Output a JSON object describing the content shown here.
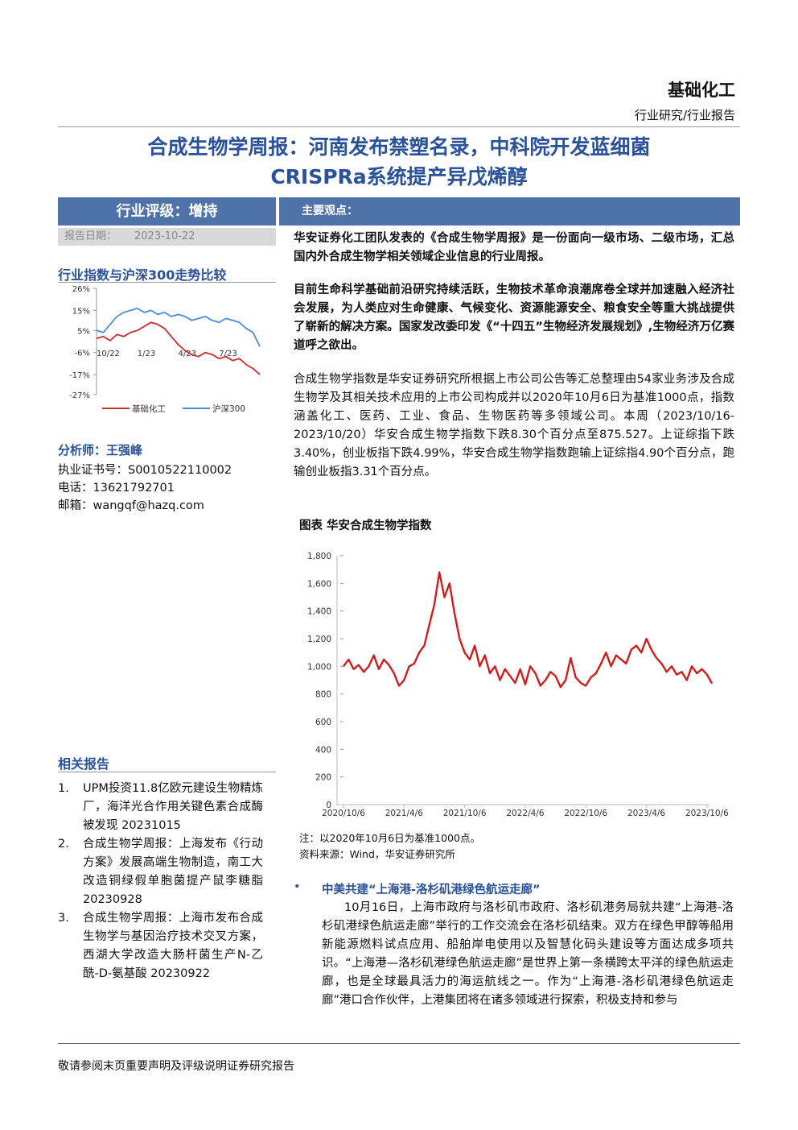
{
  "header": {
    "sector": "基础化工",
    "category": "行业研究/行业报告"
  },
  "title": [
    "合成生物学周报：河南发布禁塑名录，中科院开发蓝细菌",
    "CRISPRa系统提产异戊烯醇"
  ],
  "rating": {
    "label": "行业评级：增持",
    "date_label": "报告日期：",
    "date": "2023-10-22"
  },
  "sidebar": {
    "comparison_title": "行业指数与沪深300走势比较",
    "analyst": {
      "name": "分析师：王强峰",
      "lines": [
        "执业证书号：S0010522110002",
        "电话：13621792701",
        "邮箱：wangqf@hazq.com"
      ]
    },
    "related_title": "相关报告",
    "related": [
      {
        "num": "1.",
        "text": "UPM投资11.8亿欧元建设生物精炼厂，海洋光合作用关键色素合成酶被发现 20231015"
      },
      {
        "num": "2.",
        "text": "合成生物学周报：上海发布《行动方案》发展高端生物制造，南工大改造铜绿假单胞菌提产鼠李糖脂 20230928"
      },
      {
        "num": "3.",
        "text": "合成生物学周报：上海市发布合成生物学与基因治疗技术交叉方案，西湖大学改造大肠杆菌生产N-乙酰-D-氨基酸 20230922"
      }
    ]
  },
  "main": {
    "heading": "主要观点：",
    "bold_paragraphs": [
      "华安证券化工团队发表的《合成生物学周报》是一份面向一级市场、二级市场，汇总国内外合成生物学相关领域企业信息的行业周报。",
      "目前生命科学基础前沿研究持续活跃，生物技术革命浪潮席卷全球并加速融入经济社会发展，为人类应对生命健康、气候变化、资源能源安全、粮食安全等重大挑战提供了崭新的解决方案。国家发改委印发《“十四五”生物经济发展规划》,生物经济万亿赛道呼之欲出。"
    ],
    "paragraph": "合成生物学指数是华安证券研究所根据上市公司公告等汇总整理由54家业务涉及合成生物学及其相关技术应用的上市公司构成并以2020年10月6日为基准1000点，指数涵盖化工、医药、工业、食品、生物医药等多领域公司。本周（2023/10/16-2023/10/20）华安合成生物学指数下跌8.30个百分点至875.527。上证综指下跌3.40%，创业板指下跌4.99%，华安合成生物学指数跑输上证综指4.90个百分点，跑输创业板指3.31个百分点。",
    "chart_title": "图表 华安合成生物学指数",
    "note": "注：以2020年10月6日为基准1000点。",
    "source": "资料来源：Wind，华安证券研究所",
    "bullet": "中美共建“上海港-洛杉矶港绿色航运走廊”",
    "bullet_text": "10月16日，上海市政府与洛杉矶市政府、洛杉矶港务局就共建“上海港-洛杉矶港绿色航运走廊”举行的工作交流会在洛杉矶结束。双方在绿色甲醇等船用新能源燃料试点应用、船舶岸电使用以及智慧化码头建设等方面达成多项共识。“上海港—洛杉矶港绿色航运走廊”是世界上第一条横跨太平洋的绿色航运走廊，也是全球最具活力的海运航线之一。作为“上海港-洛杉矶港绿色航运走廊”港口合作伙伴，上港集团将在诸多领域进行探索，积极支持和参与"
  },
  "footer": "敬请参阅末页重要声明及评级说明证券研究报告",
  "chart_data": [
    {
      "type": "line",
      "categories": [
        "10/22",
        null,
        null,
        null,
        null,
        null,
        "1/23",
        null,
        null,
        null,
        null,
        null,
        "4/23",
        null,
        null,
        null,
        null,
        null,
        "7/23",
        null,
        null,
        null,
        null,
        null,
        null
      ],
      "series": [
        {
          "name": "基础化工",
          "color": "#c9302c",
          "values": [
            1,
            2,
            0,
            3,
            2,
            4,
            5,
            7,
            9,
            8,
            6,
            2,
            -2,
            -5,
            -7,
            -8,
            -6,
            -7,
            -9,
            -8,
            -10,
            -9,
            -12,
            -14,
            -17
          ]
        },
        {
          "name": "沪深300",
          "color": "#4a8fd8",
          "values": [
            5,
            4,
            8,
            12,
            14,
            15,
            16,
            14,
            15,
            13,
            14,
            12,
            13,
            12,
            10,
            11,
            12,
            10,
            9,
            11,
            10,
            9,
            6,
            4,
            -3
          ]
        }
      ],
      "ylim": [
        -27,
        26
      ],
      "yticks": [
        {
          "value": 26,
          "label": "26%"
        },
        {
          "value": 15,
          "label": "15%"
        },
        {
          "value": 5,
          "label": "5%"
        },
        {
          "value": -6,
          "label": "-6%"
        },
        {
          "value": -17,
          "label": "-17%"
        },
        {
          "value": -27,
          "label": "-27%"
        }
      ]
    },
    {
      "type": "line",
      "categories": [
        "2020/10/6",
        null,
        null,
        null,
        null,
        null,
        null,
        null,
        null,
        null,
        null,
        null,
        "2021/4/6",
        null,
        null,
        null,
        null,
        null,
        null,
        null,
        null,
        null,
        null,
        null,
        "2021/10/6",
        null,
        null,
        null,
        null,
        null,
        null,
        null,
        null,
        null,
        null,
        null,
        "2022/4/6",
        null,
        null,
        null,
        null,
        null,
        null,
        null,
        null,
        null,
        null,
        null,
        "2022/10/6",
        null,
        null,
        null,
        null,
        null,
        null,
        null,
        null,
        null,
        null,
        null,
        "2023/4/6",
        null,
        null,
        null,
        null,
        null,
        null,
        null,
        null,
        null,
        null,
        null,
        "2023/10/6",
        null
      ],
      "series": [
        {
          "color": "#d01c1c",
          "values": [
            1000,
            1050,
            980,
            1010,
            960,
            1000,
            1080,
            980,
            1050,
            1010,
            950,
            860,
            900,
            1000,
            1020,
            1100,
            1150,
            1300,
            1450,
            1680,
            1500,
            1600,
            1380,
            1200,
            1100,
            1050,
            1150,
            1000,
            1080,
            950,
            1000,
            900,
            980,
            930,
            880,
            980,
            870,
            1000,
            950,
            860,
            900,
            960,
            930,
            850,
            900,
            1060,
            920,
            880,
            860,
            920,
            950,
            1020,
            1100,
            1000,
            1080,
            1050,
            1020,
            1120,
            1150,
            1100,
            1200,
            1120,
            1060,
            1020,
            960,
            1000,
            940,
            960,
            900,
            1000,
            950,
            980,
            940,
            876
          ]
        }
      ],
      "ylim": [
        0,
        1800
      ],
      "yticks": [
        0,
        200,
        400,
        600,
        800,
        {
          "value": 1000,
          "label": "1,000"
        },
        {
          "value": 1200,
          "label": "1,200"
        },
        {
          "value": 1400,
          "label": "1,400"
        },
        {
          "value": 1600,
          "label": "1,600"
        },
        {
          "value": 1800,
          "label": "1,800"
        }
      ]
    }
  ]
}
